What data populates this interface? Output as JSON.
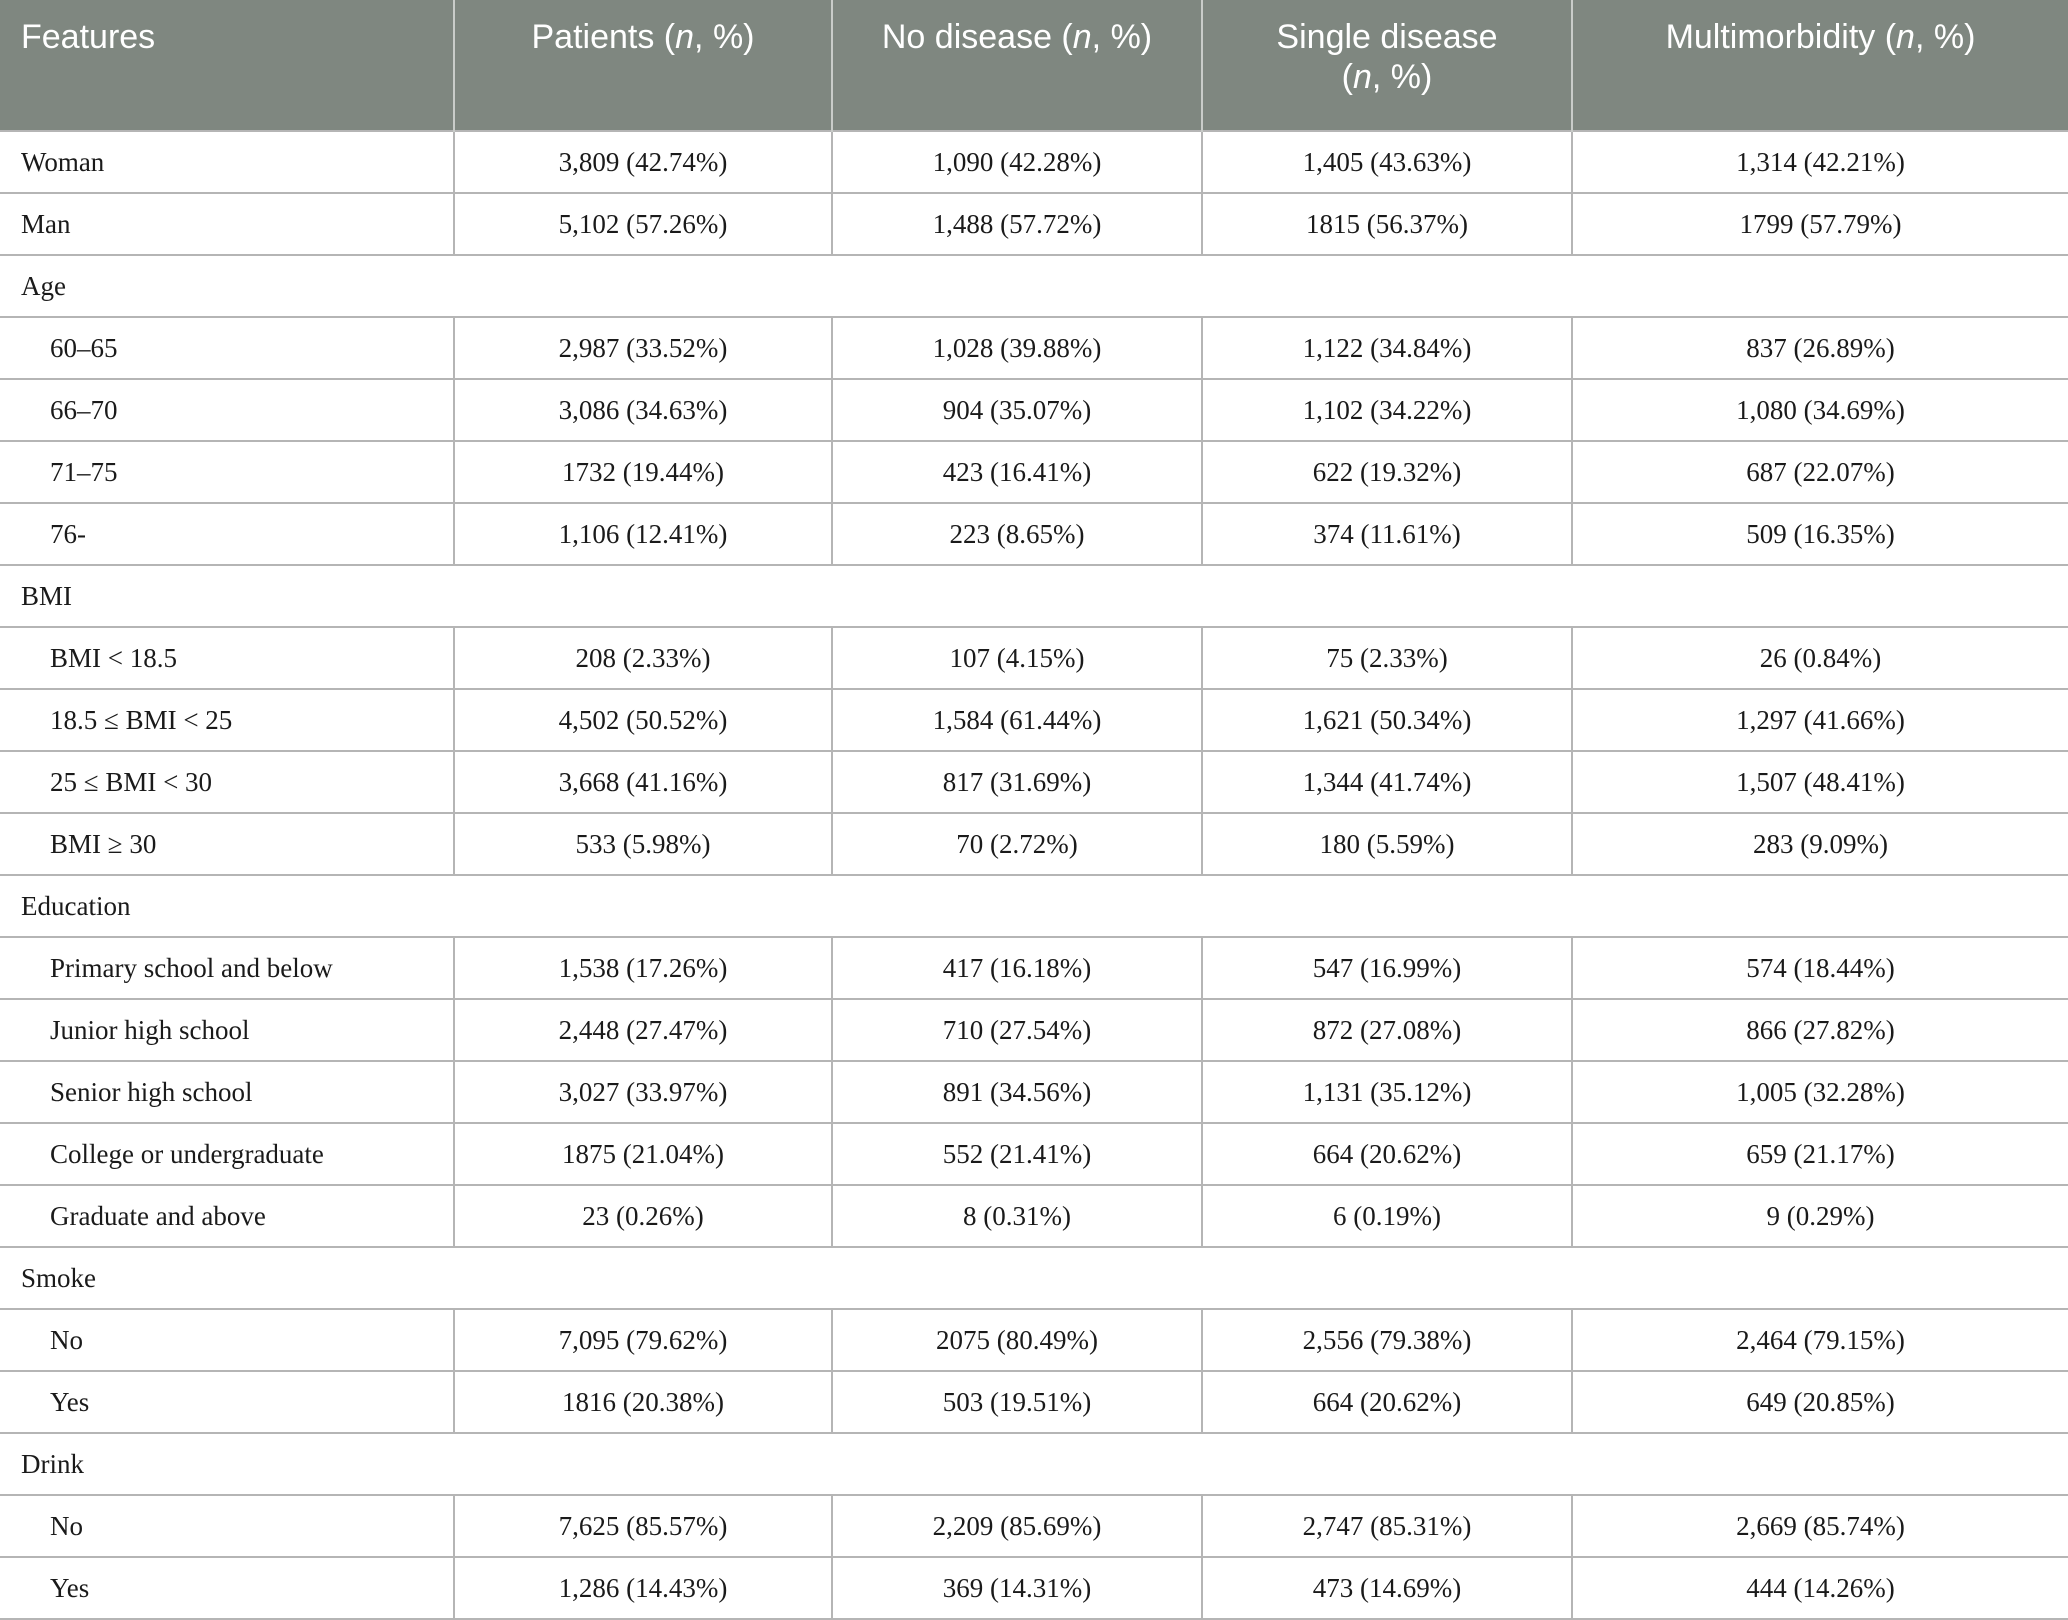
{
  "header": {
    "features": "Features",
    "patients": [
      "Patients (",
      "n",
      ", %)"
    ],
    "no_disease": [
      "No disease (",
      "n",
      ", %)"
    ],
    "single_disease": [
      "Single disease",
      "(",
      "n",
      ", %)"
    ],
    "multimorbidity": [
      "Multimorbidity (",
      "n",
      ", %)"
    ]
  },
  "rows": [
    {
      "type": "row",
      "label": "Woman",
      "values": [
        "3,809 (42.74%)",
        "1,090 (42.28%)",
        "1,405 (43.63%)",
        "1,314 (42.21%)"
      ]
    },
    {
      "type": "row",
      "label": "Man",
      "values": [
        "5,102 (57.26%)",
        "1,488 (57.72%)",
        "1815 (56.37%)",
        "1799 (57.79%)"
      ]
    },
    {
      "type": "group",
      "label": "Age"
    },
    {
      "type": "sub",
      "label": "60–65",
      "values": [
        "2,987 (33.52%)",
        "1,028 (39.88%)",
        "1,122 (34.84%)",
        "837 (26.89%)"
      ]
    },
    {
      "type": "sub",
      "label": "66–70",
      "values": [
        "3,086 (34.63%)",
        "904 (35.07%)",
        "1,102 (34.22%)",
        "1,080 (34.69%)"
      ]
    },
    {
      "type": "sub",
      "label": "71–75",
      "values": [
        "1732 (19.44%)",
        "423 (16.41%)",
        "622 (19.32%)",
        "687 (22.07%)"
      ]
    },
    {
      "type": "sub",
      "label": "76-",
      "values": [
        "1,106 (12.41%)",
        "223 (8.65%)",
        "374 (11.61%)",
        "509 (16.35%)"
      ]
    },
    {
      "type": "group",
      "label": "BMI"
    },
    {
      "type": "sub",
      "label": "BMI < 18.5",
      "values": [
        "208 (2.33%)",
        "107 (4.15%)",
        "75 (2.33%)",
        "26 (0.84%)"
      ]
    },
    {
      "type": "sub",
      "label": "18.5 ≤ BMI < 25",
      "values": [
        "4,502 (50.52%)",
        "1,584 (61.44%)",
        "1,621 (50.34%)",
        "1,297 (41.66%)"
      ]
    },
    {
      "type": "sub",
      "label": "25 ≤ BMI < 30",
      "values": [
        "3,668 (41.16%)",
        "817 (31.69%)",
        "1,344 (41.74%)",
        "1,507 (48.41%)"
      ]
    },
    {
      "type": "sub",
      "label": "BMI ≥ 30",
      "values": [
        "533 (5.98%)",
        "70 (2.72%)",
        "180 (5.59%)",
        "283 (9.09%)"
      ]
    },
    {
      "type": "group",
      "label": "Education"
    },
    {
      "type": "sub",
      "label": "Primary school and below",
      "values": [
        "1,538 (17.26%)",
        "417 (16.18%)",
        "547 (16.99%)",
        "574 (18.44%)"
      ]
    },
    {
      "type": "sub",
      "label": "Junior high school",
      "values": [
        "2,448 (27.47%)",
        "710 (27.54%)",
        "872 (27.08%)",
        "866 (27.82%)"
      ]
    },
    {
      "type": "sub",
      "label": "Senior high school",
      "values": [
        "3,027 (33.97%)",
        "891 (34.56%)",
        "1,131 (35.12%)",
        "1,005 (32.28%)"
      ]
    },
    {
      "type": "sub",
      "label": "College or undergraduate",
      "values": [
        "1875 (21.04%)",
        "552 (21.41%)",
        "664 (20.62%)",
        "659 (21.17%)"
      ]
    },
    {
      "type": "sub",
      "label": "Graduate and above",
      "values": [
        "23 (0.26%)",
        "8 (0.31%)",
        "6 (0.19%)",
        "9 (0.29%)"
      ]
    },
    {
      "type": "group",
      "label": "Smoke"
    },
    {
      "type": "sub",
      "label": "No",
      "values": [
        "7,095 (79.62%)",
        "2075 (80.49%)",
        "2,556 (79.38%)",
        "2,464 (79.15%)"
      ]
    },
    {
      "type": "sub",
      "label": "Yes",
      "values": [
        "1816 (20.38%)",
        "503 (19.51%)",
        "664 (20.62%)",
        "649 (20.85%)"
      ]
    },
    {
      "type": "group",
      "label": "Drink"
    },
    {
      "type": "sub",
      "label": "No",
      "values": [
        "7,625 (85.57%)",
        "2,209 (85.69%)",
        "2,747 (85.31%)",
        "2,669 (85.74%)"
      ]
    },
    {
      "type": "sub",
      "label": "Yes",
      "values": [
        "1,286 (14.43%)",
        "369 (14.31%)",
        "473 (14.69%)",
        "444 (14.26%)"
      ]
    }
  ]
}
